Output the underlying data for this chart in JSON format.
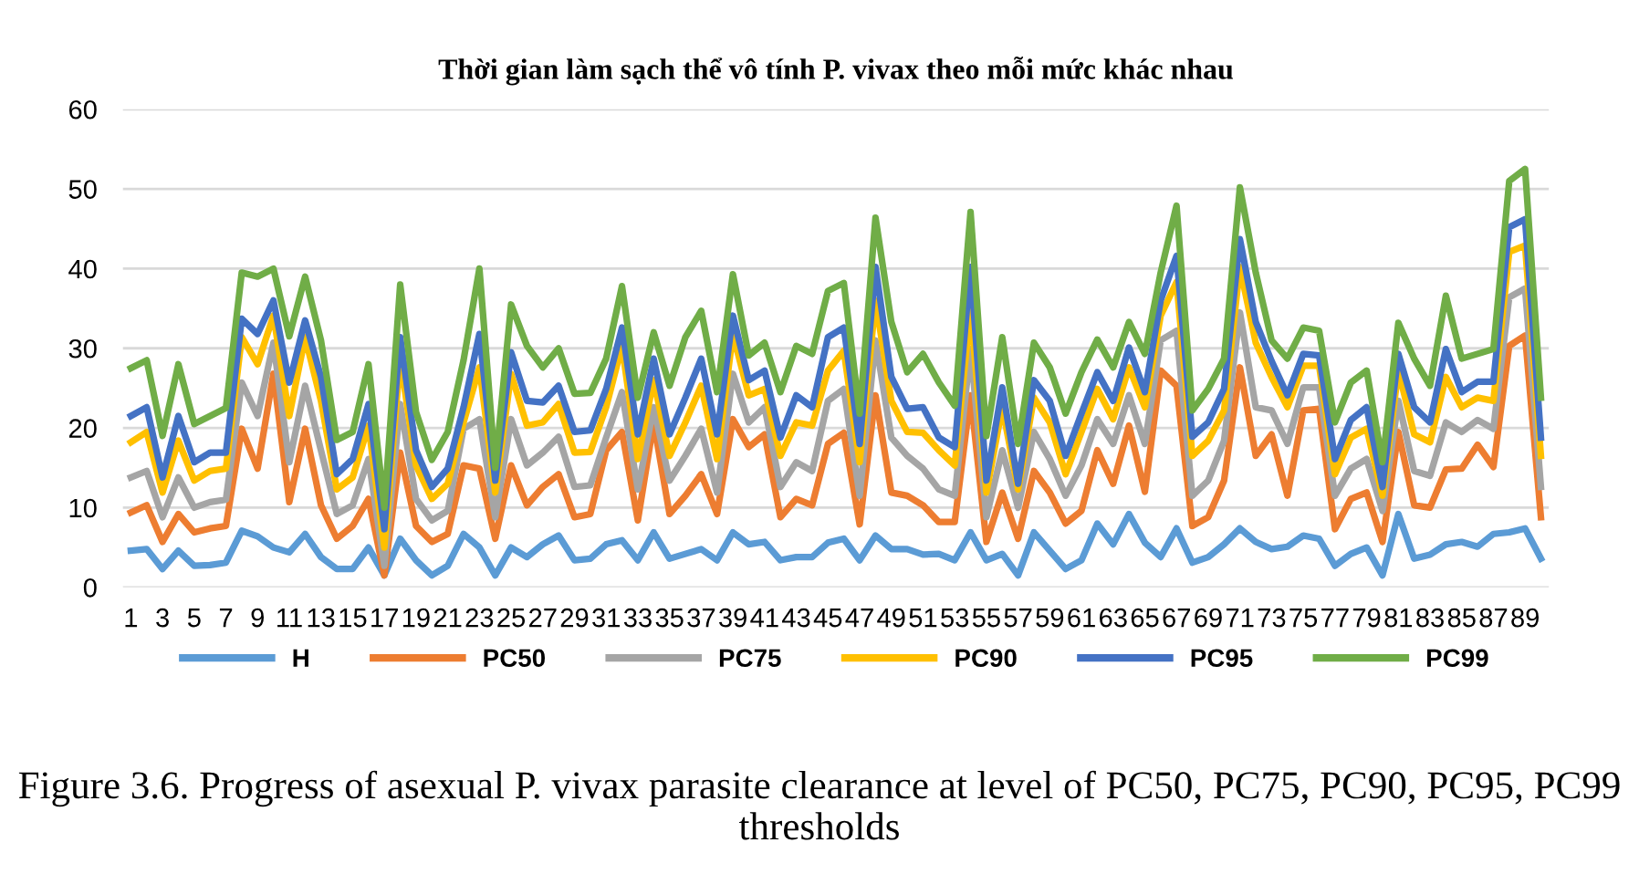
{
  "chart_data": {
    "type": "line",
    "title": "Thời gian làm sạch thể vô tính P. vivax theo mỗi mức khác nhau",
    "categories": [
      "1",
      null,
      "3",
      null,
      "5",
      null,
      "7",
      null,
      "9",
      null,
      "11",
      null,
      "13",
      null,
      "15",
      null,
      "17",
      null,
      "19",
      null,
      "21",
      null,
      "23",
      null,
      "25",
      null,
      "27",
      null,
      "29",
      null,
      "31",
      null,
      "33",
      null,
      "35",
      null,
      "37",
      null,
      "39",
      null,
      "41",
      null,
      "43",
      null,
      "45",
      null,
      "47",
      null,
      "49",
      null,
      "51",
      null,
      "53",
      null,
      "55",
      null,
      "57",
      null,
      "59",
      null,
      "61",
      null,
      "63",
      null,
      "65",
      null,
      "67",
      null,
      "69",
      null,
      "71",
      null,
      "73",
      null,
      "75",
      null,
      "77",
      null,
      "79",
      null,
      "81",
      null,
      "83",
      null,
      "85",
      null,
      "87",
      null,
      "89",
      null
    ],
    "ylim": [
      0,
      60
    ],
    "yticks": [
      0,
      10,
      20,
      30,
      40,
      50,
      60
    ],
    "grid": "y",
    "legend": "bottom",
    "marker": "none",
    "line_style": "solid",
    "annotations": [
      "Figure 3.6. Progress of asexual P. vivax parasite clearance at level of PC50, PC75, PC90, PC95, PC99 thresholds"
    ],
    "series": [
      {
        "name": "H",
        "color": "#5b9bd5",
        "values": [
          4.6,
          4.8,
          2.3,
          4.6,
          2.7,
          2.8,
          3.1,
          7.1,
          6.4,
          5,
          4.4,
          6.7,
          3.8,
          2.3,
          2.3,
          5,
          1.5,
          6.1,
          3.4,
          1.5,
          2.7,
          6.7,
          5,
          1.5,
          5,
          3.8,
          5.4,
          6.5,
          3.4,
          3.6,
          5.4,
          5.9,
          3.4,
          6.9,
          3.6,
          4.2,
          4.8,
          3.4,
          6.9,
          5.4,
          5.7,
          3.4,
          3.8,
          3.8,
          5.6,
          6.1,
          3.4,
          6.5,
          4.8,
          4.8,
          4.1,
          4.2,
          3.4,
          6.9,
          3.4,
          4.2,
          1.5,
          6.9,
          4.6,
          2.3,
          3.4,
          8,
          5.4,
          9.2,
          5.6,
          3.8,
          7.4,
          3.1,
          3.8,
          5.4,
          7.4,
          5.7,
          4.8,
          5.1,
          6.5,
          6.1,
          2.7,
          4.2,
          5,
          1.5,
          9.2,
          3.6,
          4.1,
          5.4,
          5.7,
          5.1,
          6.7,
          6.9,
          7.4,
          3.6
        ]
      },
      {
        "name": "PC50",
        "color": "#ed7d31",
        "values": [
          9.4,
          10.3,
          5.7,
          9.2,
          6.9,
          7.4,
          7.7,
          19.9,
          14.9,
          26.8,
          10.7,
          19.9,
          10.3,
          6.1,
          7.7,
          11.1,
          1.5,
          16.9,
          7.7,
          5.7,
          6.7,
          15.3,
          14.9,
          6.1,
          15.3,
          10.3,
          12.6,
          14.2,
          8.8,
          9.2,
          17.2,
          19.5,
          8.4,
          20.7,
          9.2,
          11.5,
          14.2,
          9.2,
          21.1,
          17.6,
          19.2,
          8.8,
          11.1,
          10.3,
          18,
          19.4,
          7.9,
          24.1,
          11.9,
          11.5,
          10.3,
          8.2,
          8.2,
          24.1,
          5.7,
          11.9,
          6.1,
          14.6,
          11.9,
          8,
          9.6,
          17.2,
          13,
          20.3,
          12,
          27.2,
          25.3,
          7.7,
          8.8,
          13.4,
          27.6,
          16.5,
          19.2,
          11.5,
          22.2,
          22.4,
          7.3,
          11.1,
          11.9,
          5.7,
          19.5,
          10.3,
          10,
          14.8,
          14.9,
          17.9,
          15.1,
          30.3,
          31.6,
          8.8
        ]
      },
      {
        "name": "PC75",
        "color": "#a5a5a5",
        "values": [
          13.8,
          14.6,
          8.8,
          13.8,
          10,
          10.7,
          11,
          25.7,
          21.5,
          30.7,
          15.7,
          25.3,
          17.2,
          9.2,
          10.3,
          16.1,
          2.7,
          23,
          11.1,
          8.4,
          9.6,
          19.9,
          21.1,
          8.8,
          21.1,
          15.3,
          16.9,
          18.9,
          12.6,
          12.8,
          18.8,
          24.5,
          12.3,
          22.6,
          13.4,
          16.5,
          19.9,
          11.9,
          26.8,
          20.7,
          22.6,
          12.6,
          15.7,
          14.6,
          23.4,
          24.9,
          11.5,
          31,
          18.8,
          16.5,
          14.9,
          12.3,
          11.5,
          29.9,
          8.8,
          17.2,
          10,
          19.5,
          16.1,
          11.5,
          15.3,
          21.1,
          18,
          24.1,
          18,
          31,
          32.2,
          11.5,
          13.4,
          18.4,
          34.5,
          22.6,
          22.2,
          18,
          25.1,
          25.1,
          11.5,
          14.9,
          16.1,
          9.6,
          23.4,
          14.6,
          14,
          20.7,
          19.5,
          21,
          19.9,
          36.4,
          37.5,
          12.6
        ]
      },
      {
        "name": "PC90",
        "color": "#ffc000",
        "values": [
          18.2,
          19.5,
          11.9,
          18.4,
          13.4,
          14.6,
          14.9,
          31.4,
          28,
          34.1,
          21.5,
          31.4,
          23.4,
          12.3,
          13.8,
          20.3,
          5,
          28.7,
          15.3,
          11.1,
          13,
          20.7,
          27.6,
          11.9,
          26.8,
          20.3,
          20.7,
          23,
          16.9,
          17,
          22.6,
          30.3,
          16.1,
          26,
          16.5,
          20.7,
          25.3,
          16.1,
          31.8,
          24.1,
          24.9,
          16.5,
          20.7,
          20.3,
          27.2,
          29.7,
          15.7,
          36,
          23.4,
          19.5,
          19.4,
          17.2,
          15.3,
          34.9,
          11.9,
          22.6,
          12.3,
          23.8,
          20.7,
          14.2,
          19.5,
          24.9,
          21.1,
          27.6,
          22.6,
          34.1,
          38.3,
          16.5,
          18.4,
          22.2,
          40.2,
          30.7,
          26.4,
          22.6,
          27.8,
          27.8,
          14.2,
          18.8,
          19.9,
          11.5,
          27.2,
          19.2,
          18.2,
          26.4,
          22.6,
          23.8,
          23.4,
          42.1,
          42.9,
          16.5
        ]
      },
      {
        "name": "PC95",
        "color": "#4472c4",
        "values": [
          21.5,
          22.6,
          13.8,
          21.5,
          15.7,
          16.9,
          16.9,
          33.7,
          31.8,
          36,
          25.7,
          33.5,
          26.4,
          14.2,
          16.1,
          23,
          7.3,
          31.4,
          17.2,
          12.6,
          14.9,
          22.6,
          31.8,
          13.4,
          29.5,
          23.4,
          23.2,
          25.3,
          19.5,
          19.7,
          24.9,
          32.6,
          19.2,
          28.7,
          19.2,
          23.8,
          28.7,
          19.2,
          34.1,
          26,
          27.2,
          18.8,
          24.1,
          22.6,
          31.4,
          32.6,
          18,
          40.2,
          26.4,
          22.4,
          22.6,
          18.8,
          17.6,
          40.2,
          13.4,
          25.1,
          13,
          26,
          23.4,
          16.5,
          21.8,
          27,
          23.4,
          30.1,
          24.5,
          36,
          41.6,
          18.9,
          20.7,
          24.9,
          43.7,
          33.3,
          28.4,
          24.1,
          29.3,
          29.1,
          16.1,
          21,
          22.6,
          12.6,
          29.3,
          22.6,
          20.7,
          29.9,
          24.5,
          25.8,
          25.8,
          45.2,
          46.2,
          18.8
        ]
      },
      {
        "name": "PC99",
        "color": "#70ad47",
        "values": [
          27.5,
          28.5,
          19,
          28,
          20.5,
          21.5,
          22.5,
          39.5,
          39,
          40,
          31.5,
          39,
          31,
          18.5,
          19.5,
          28,
          10,
          38,
          22,
          16,
          19.5,
          28.5,
          40,
          15,
          35.5,
          30.3,
          27.6,
          30,
          24.3,
          24.4,
          28.7,
          37.8,
          23.8,
          32,
          25.3,
          31.4,
          34.7,
          24.5,
          39.3,
          29.1,
          30.7,
          24.5,
          30.3,
          29.3,
          37.2,
          38.2,
          21.8,
          46.4,
          33.3,
          27,
          29.3,
          25.7,
          22.8,
          47.1,
          19,
          31.4,
          18,
          30.7,
          27.6,
          21.8,
          27,
          31.1,
          27.6,
          33.3,
          29.3,
          39.5,
          47.9,
          22.2,
          24.9,
          28.7,
          50.2,
          39.5,
          31,
          28.7,
          32.6,
          32.2,
          20.7,
          25.7,
          27.2,
          15.7,
          33.2,
          28.7,
          25.3,
          36.6,
          28.7,
          29.3,
          29.9,
          51,
          52.5,
          23.8
        ]
      }
    ]
  }
}
